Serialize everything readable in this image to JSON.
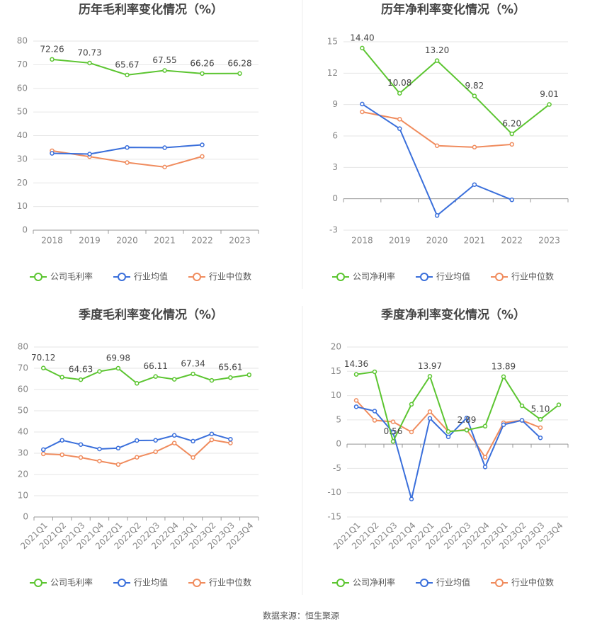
{
  "chart_data": [
    {
      "type": "line",
      "title": "历年毛利率变化情况（%）",
      "categories": [
        "2018",
        "2019",
        "2020",
        "2021",
        "2022",
        "2023"
      ],
      "ylim": [
        0,
        80
      ],
      "yticks": [
        0,
        10,
        20,
        30,
        40,
        50,
        60,
        70,
        80
      ],
      "grid": true,
      "series": [
        {
          "name": "公司毛利率",
          "color": "#5cc531",
          "values": [
            72.26,
            70.73,
            65.67,
            67.55,
            66.26,
            66.28
          ],
          "value_labels": [
            "72.26",
            "70.73",
            "65.67",
            "67.55",
            "66.26",
            "66.28"
          ]
        },
        {
          "name": "行业均值",
          "color": "#3a6fdb",
          "values": [
            32.5,
            32.2,
            35.0,
            34.9,
            36.1,
            null
          ]
        },
        {
          "name": "行业中位数",
          "color": "#f08c5e",
          "values": [
            33.6,
            31.1,
            28.6,
            26.7,
            31.2,
            null
          ]
        }
      ]
    },
    {
      "type": "line",
      "title": "历年净利率变化情况（%）",
      "categories": [
        "2018",
        "2019",
        "2020",
        "2021",
        "2022",
        "2023"
      ],
      "ylim": [
        -3,
        15
      ],
      "yticks": [
        -3,
        0,
        3,
        6,
        9,
        12,
        15
      ],
      "grid": true,
      "series": [
        {
          "name": "公司净利率",
          "color": "#5cc531",
          "values": [
            14.4,
            10.08,
            13.2,
            9.82,
            6.2,
            9.01
          ],
          "value_labels": [
            "14.40",
            "10.08",
            "13.20",
            "9.82",
            "6.20",
            "9.01"
          ]
        },
        {
          "name": "行业均值",
          "color": "#3a6fdb",
          "values": [
            9.05,
            6.7,
            -1.6,
            1.35,
            -0.1,
            null
          ]
        },
        {
          "name": "行业中位数",
          "color": "#f08c5e",
          "values": [
            8.3,
            7.6,
            5.07,
            4.93,
            5.2,
            null
          ]
        }
      ]
    },
    {
      "type": "line",
      "title": "季度毛利率变化情况（%）",
      "rotate_labels": true,
      "categories": [
        "2021Q1",
        "2021Q2",
        "2021Q3",
        "2021Q4",
        "2022Q1",
        "2022Q2",
        "2022Q3",
        "2022Q4",
        "2023Q1",
        "2023Q2",
        "2023Q3",
        "2023Q4"
      ],
      "ylim": [
        0,
        80
      ],
      "yticks": [
        0,
        10,
        20,
        30,
        40,
        50,
        60,
        70,
        80
      ],
      "grid": true,
      "series": [
        {
          "name": "公司毛利率",
          "color": "#5cc531",
          "values": [
            70.12,
            65.8,
            64.63,
            68.5,
            69.98,
            62.9,
            66.11,
            64.8,
            67.34,
            64.3,
            65.61,
            66.9
          ],
          "value_labels": [
            "70.12",
            null,
            "64.63",
            null,
            "69.98",
            null,
            "66.11",
            null,
            "67.34",
            null,
            "65.61",
            null
          ]
        },
        {
          "name": "行业均值",
          "color": "#3a6fdb",
          "values": [
            31.7,
            36.1,
            34.1,
            32.0,
            32.4,
            36.0,
            36.1,
            38.4,
            35.7,
            39.1,
            36.6,
            null
          ]
        },
        {
          "name": "行业中位数",
          "color": "#f08c5e",
          "values": [
            29.7,
            29.3,
            28.0,
            26.3,
            24.7,
            28.1,
            30.7,
            34.8,
            28.0,
            36.3,
            34.8,
            null
          ]
        }
      ]
    },
    {
      "type": "line",
      "title": "季度净利率变化情况（%）",
      "rotate_labels": true,
      "categories": [
        "2021Q1",
        "2021Q2",
        "2021Q3",
        "2021Q4",
        "2022Q1",
        "2022Q2",
        "2022Q3",
        "2022Q4",
        "2023Q1",
        "2023Q2",
        "2023Q3",
        "2023Q4"
      ],
      "ylim": [
        -15,
        20
      ],
      "yticks": [
        -15,
        -10,
        -5,
        0,
        5,
        10,
        15,
        20
      ],
      "grid": true,
      "series": [
        {
          "name": "公司净利率",
          "color": "#5cc531",
          "values": [
            14.36,
            14.9,
            0.56,
            8.2,
            13.97,
            2.6,
            2.89,
            3.7,
            13.89,
            7.9,
            5.1,
            8.1
          ],
          "value_labels": [
            "14.36",
            null,
            "0.56",
            null,
            "13.97",
            null,
            "2.89",
            null,
            "13.89",
            null,
            "5.10",
            null
          ]
        },
        {
          "name": "行业均值",
          "color": "#3a6fdb",
          "values": [
            7.7,
            6.8,
            2.4,
            -11.3,
            5.3,
            1.5,
            5.4,
            -4.7,
            4.0,
            4.9,
            1.3,
            null
          ]
        },
        {
          "name": "行业中位数",
          "color": "#f08c5e",
          "values": [
            9.0,
            4.9,
            4.6,
            2.5,
            6.7,
            2.6,
            3.0,
            -2.7,
            4.4,
            4.9,
            3.4,
            null
          ]
        }
      ]
    }
  ],
  "source": "数据来源：恒生聚源"
}
